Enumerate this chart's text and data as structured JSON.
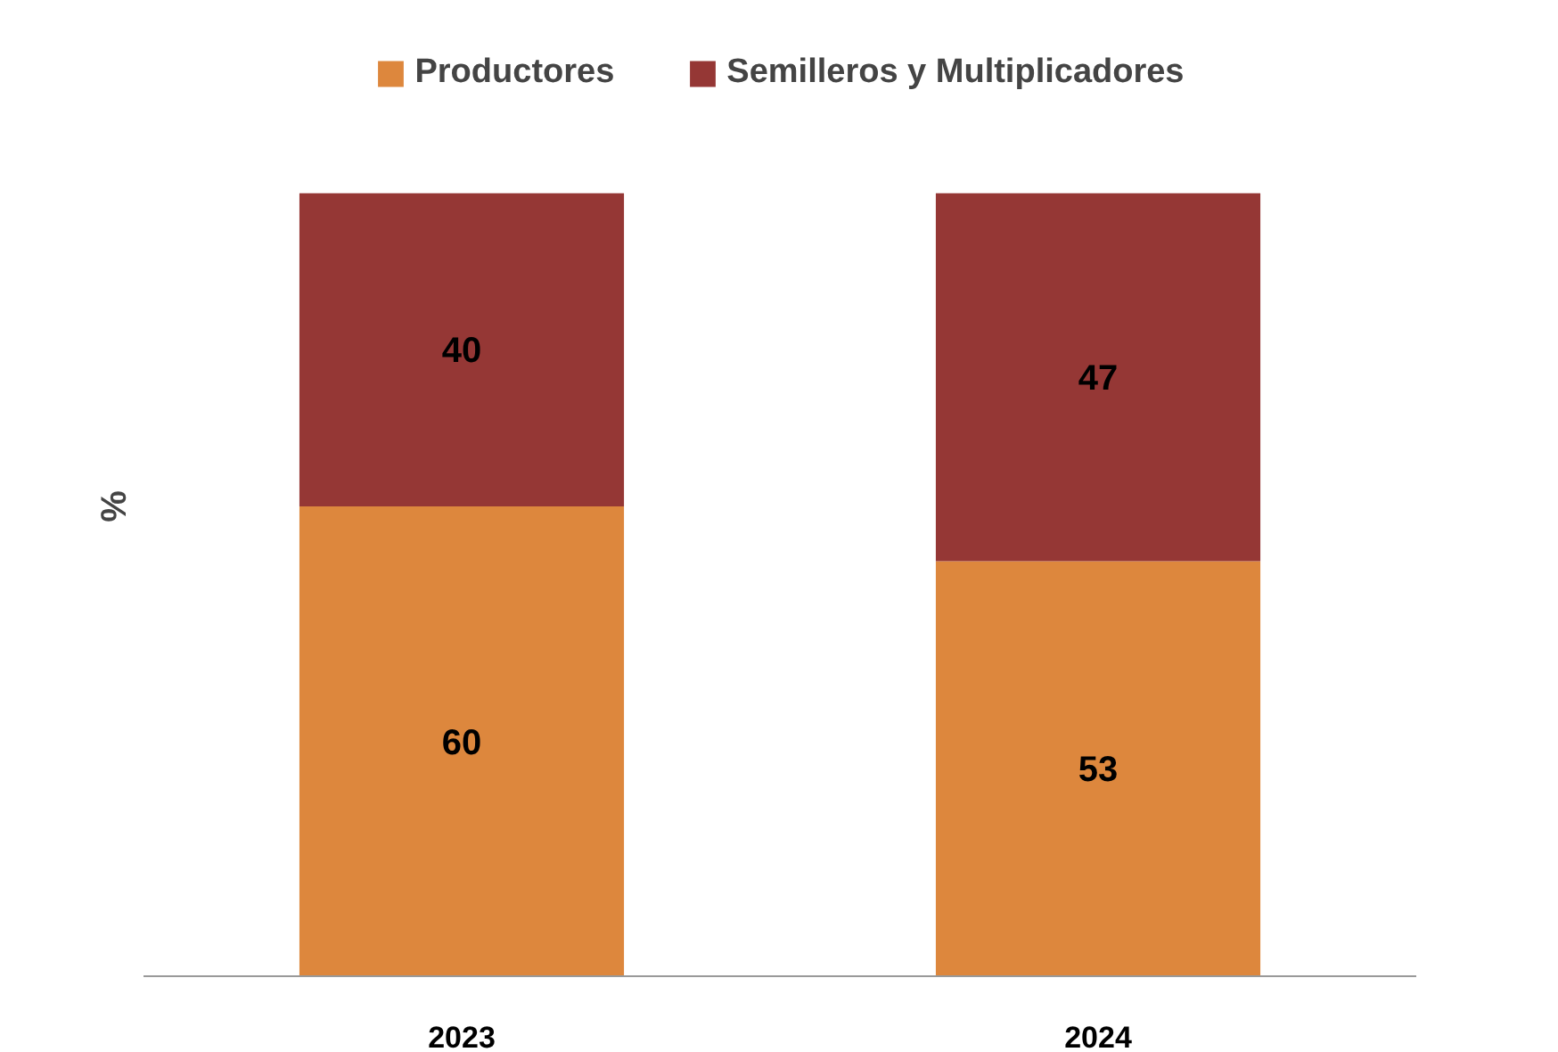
{
  "chart_data": {
    "type": "bar",
    "stacked": true,
    "ylabel": "%",
    "categories": [
      "2023",
      "2024"
    ],
    "series": [
      {
        "name": "Productores",
        "color": "#dd873d",
        "values": [
          60,
          53
        ]
      },
      {
        "name": "Semilleros y Multiplicadores",
        "color": "#953735",
        "values": [
          40,
          47
        ]
      }
    ],
    "data_labels": true,
    "legend": "top",
    "grid": false,
    "tick_labels": "x"
  }
}
